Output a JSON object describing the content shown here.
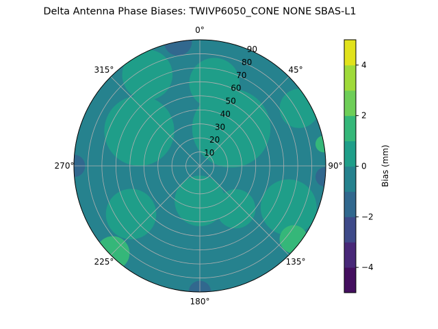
{
  "chart_data": {
    "type": "heatmap",
    "subtype": "polar-filled-contour",
    "title": "Delta Antenna Phase Biases: TWIVP6050_CONE  NONE SBAS-L1",
    "angular_ticks": [
      "0°",
      "45°",
      "90°",
      "135°",
      "180°",
      "225°",
      "270°",
      "315°"
    ],
    "radial_ticks": [
      "10",
      "20",
      "30",
      "40",
      "50",
      "60",
      "70",
      "80",
      "90"
    ],
    "radial_range": [
      0,
      90
    ],
    "angular_direction": "clockwise",
    "angular_zero": "top",
    "grid": true,
    "colorbar": {
      "label": "Bias (mm)",
      "range": [
        -5,
        5
      ],
      "ticks": [
        "4",
        "2",
        "0",
        "−2",
        "−4"
      ],
      "tick_values": [
        4,
        2,
        0,
        -2,
        -4
      ],
      "levels": [
        -5,
        -4,
        -3,
        -2,
        -1,
        0,
        1,
        2,
        3,
        4,
        5
      ],
      "colors": [
        "#440f5f",
        "#482878",
        "#3e4a89",
        "#31688e",
        "#26828e",
        "#1f9e89",
        "#35b779",
        "#6ece58",
        "#9fda3a",
        "#e1e21c"
      ],
      "placement": "right"
    },
    "background_level": -0.5,
    "regions": [
      {
        "azimuth": 40,
        "zenith": 35,
        "spread": 28,
        "bias": 0.5
      },
      {
        "azimuth": 10,
        "zenith": 60,
        "spread": 18,
        "bias": 0.5
      },
      {
        "azimuth": 300,
        "zenith": 50,
        "spread": 25,
        "bias": 0.5
      },
      {
        "azimuth": 330,
        "zenith": 75,
        "spread": 18,
        "bias": 0.5
      },
      {
        "azimuth": 180,
        "zenith": 25,
        "spread": 18,
        "bias": 0.5
      },
      {
        "azimuth": 115,
        "zenith": 70,
        "spread": 20,
        "bias": 0.5
      },
      {
        "azimuth": 60,
        "zenith": 82,
        "spread": 14,
        "bias": 0.5
      },
      {
        "azimuth": 235,
        "zenith": 60,
        "spread": 18,
        "bias": 0.5
      },
      {
        "azimuth": 140,
        "zenith": 40,
        "spread": 14,
        "bias": 0.5
      },
      {
        "azimuth": 225,
        "zenith": 88,
        "spread": 12,
        "bias": 1.5
      },
      {
        "azimuth": 128,
        "zenith": 85,
        "spread": 10,
        "bias": 1.5
      },
      {
        "azimuth": 80,
        "zenith": 90,
        "spread": 6,
        "bias": 1.5
      },
      {
        "azimuth": 270,
        "zenith": 90,
        "spread": 8,
        "bias": -1.5
      },
      {
        "azimuth": 350,
        "zenith": 90,
        "spread": 10,
        "bias": -1.5
      },
      {
        "azimuth": 95,
        "zenith": 90,
        "spread": 7,
        "bias": -1.5
      },
      {
        "azimuth": 180,
        "zenith": 90,
        "spread": 8,
        "bias": -1.5
      }
    ]
  }
}
